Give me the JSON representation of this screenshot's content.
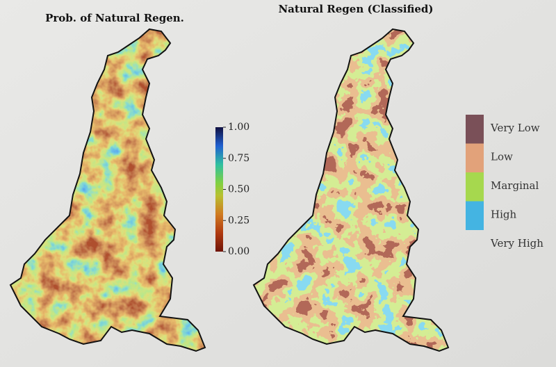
{
  "maps": [
    {
      "title": "Prob. of Natural Regen.",
      "colorbar": {
        "range": [
          0,
          1
        ],
        "ticks": [
          {
            "value": 0,
            "label": "0.00"
          },
          {
            "value": 0.25,
            "label": "0.25"
          },
          {
            "value": 0.5,
            "label": "0.50"
          },
          {
            "value": 0.75,
            "label": "0.75"
          },
          {
            "value": 1,
            "label": "1.00"
          }
        ]
      }
    },
    {
      "title": "Natural Regen (Classified)",
      "legend": [
        {
          "label": "Very Low",
          "color": "#7a5058"
        },
        {
          "label": "Low",
          "color": "#e2a27a"
        },
        {
          "label": "Marginal",
          "color": "#a6d84e"
        },
        {
          "label": "High",
          "color": "#44b4e2"
        },
        {
          "label": "Very High"
        }
      ]
    }
  ]
}
